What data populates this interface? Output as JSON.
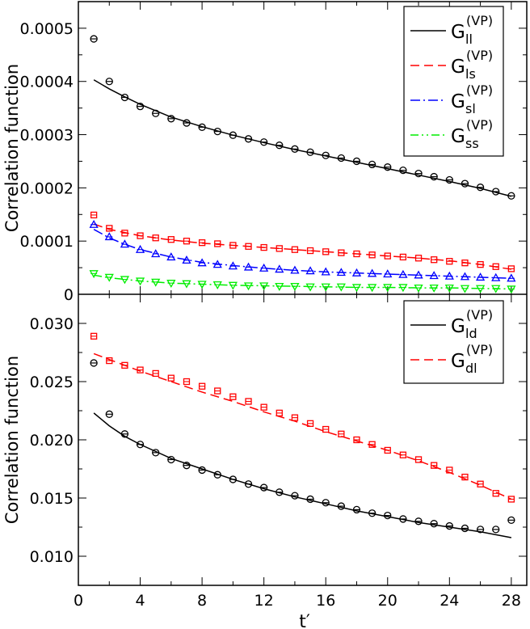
{
  "chart_data": [
    {
      "type": "line",
      "panel": "top",
      "ylabel": "Correlation function",
      "xlabel": "",
      "xlim": [
        0,
        29
      ],
      "ylim": [
        0,
        0.00055
      ],
      "xticks": [
        0,
        4,
        8,
        12,
        16,
        20,
        24,
        28
      ],
      "yticks": [
        0,
        0.0001,
        0.0002,
        0.0003,
        0.0004,
        0.0005
      ],
      "ytick_labels": [
        "0",
        "0.0001",
        "0.0002",
        "0.0003",
        "0.0004",
        "0.0005"
      ],
      "legend_position": "top-right",
      "series": [
        {
          "name": "G",
          "sub": "ll",
          "sup": "(VP)",
          "color": "#000000",
          "dash": "",
          "marker": "circle",
          "points_x": [
            1,
            2,
            3,
            4,
            5,
            6,
            7,
            8,
            9,
            10,
            11,
            12,
            13,
            14,
            15,
            16,
            17,
            18,
            19,
            20,
            21,
            22,
            23,
            24,
            25,
            26,
            27,
            28
          ],
          "points_y": [
            0.00048,
            0.0004,
            0.00037,
            0.000353,
            0.00034,
            0.00033,
            0.000322,
            0.000314,
            0.000306,
            0.000299,
            0.000292,
            0.000286,
            0.00028,
            0.000273,
            0.000267,
            0.000261,
            0.000256,
            0.00025,
            0.000244,
            0.000239,
            0.000233,
            0.000227,
            0.000221,
            0.000215,
            0.000208,
            0.000201,
            0.000193,
            0.000185
          ],
          "fit_x": [
            1,
            2,
            3,
            4,
            5,
            6,
            8,
            10,
            12,
            14,
            16,
            18,
            20,
            22,
            24,
            26,
            28
          ],
          "fit_y": [
            0.000403,
            0.000386,
            0.000371,
            0.000357,
            0.000345,
            0.000333,
            0.000315,
            0.000299,
            0.000285,
            0.000272,
            0.00026,
            0.000248,
            0.000236,
            0.000224,
            0.000212,
            0.000199,
            0.000184
          ]
        },
        {
          "name": "G",
          "sub": "ls",
          "sup": "(VP)",
          "color": "#ff0000",
          "dash": "11,6",
          "marker": "square",
          "points_x": [
            1,
            2,
            3,
            4,
            5,
            6,
            7,
            8,
            9,
            10,
            11,
            12,
            13,
            14,
            15,
            16,
            17,
            18,
            19,
            20,
            21,
            22,
            23,
            24,
            25,
            26,
            27,
            28
          ],
          "points_y": [
            0.000149,
            0.000124,
            0.000115,
            0.00011,
            0.000106,
            0.000103,
            0.0001,
            9.7e-05,
            9.5e-05,
            9.2e-05,
            9e-05,
            8.8e-05,
            8.6e-05,
            8.4e-05,
            8.2e-05,
            8e-05,
            7.8e-05,
            7.6e-05,
            7.4e-05,
            7.2e-05,
            7e-05,
            6.8e-05,
            6.5e-05,
            6.2e-05,
            5.9e-05,
            5.6e-05,
            5.2e-05,
            4.8e-05
          ],
          "fit_x": [
            1,
            2,
            4,
            6,
            8,
            10,
            12,
            14,
            16,
            18,
            20,
            22,
            24,
            26,
            28
          ],
          "fit_y": [
            0.000132,
            0.000122,
            0.00011,
            0.000102,
            9.6e-05,
            9.2e-05,
            8.8e-05,
            8.4e-05,
            8e-05,
            7.6e-05,
            7.2e-05,
            6.8e-05,
            6.3e-05,
            5.6e-05,
            4.7e-05
          ]
        },
        {
          "name": "G",
          "sub": "sl",
          "sup": "(VP)",
          "color": "#0000ff",
          "dash": "12,4,2,4",
          "marker": "triangle-up",
          "points_x": [
            1,
            2,
            3,
            4,
            5,
            6,
            7,
            8,
            9,
            10,
            11,
            12,
            13,
            14,
            15,
            16,
            17,
            18,
            19,
            20,
            21,
            22,
            23,
            24,
            25,
            26,
            27,
            28
          ],
          "points_y": [
            0.000131,
            0.000108,
            9.4e-05,
            8.4e-05,
            7.6e-05,
            7e-05,
            6.4e-05,
            5.9e-05,
            5.6e-05,
            5.3e-05,
            5.1e-05,
            4.9e-05,
            4.7e-05,
            4.5e-05,
            4.4e-05,
            4.2e-05,
            4.1e-05,
            4e-05,
            3.9e-05,
            3.8e-05,
            3.7e-05,
            3.6e-05,
            3.5e-05,
            3.4e-05,
            3.3e-05,
            3.2e-05,
            3.1e-05,
            3e-05
          ],
          "fit_x": [
            1,
            2,
            3,
            4,
            6,
            8,
            10,
            12,
            14,
            16,
            18,
            20,
            22,
            24,
            26,
            28
          ],
          "fit_y": [
            0.000122,
            0.000106,
            9.4e-05,
            8.4e-05,
            7e-05,
            6e-05,
            5.4e-05,
            4.9e-05,
            4.5e-05,
            4.2e-05,
            4e-05,
            3.8e-05,
            3.6e-05,
            3.4e-05,
            3.2e-05,
            3e-05
          ]
        },
        {
          "name": "G",
          "sub": "ss",
          "sup": "(VP)",
          "color": "#00ee00",
          "dash": "10,4,2,4,2,4",
          "marker": "triangle-down",
          "points_x": [
            1,
            2,
            3,
            4,
            5,
            6,
            7,
            8,
            9,
            10,
            11,
            12,
            13,
            14,
            15,
            16,
            17,
            18,
            19,
            20,
            21,
            22,
            23,
            24,
            25,
            26,
            27,
            28
          ],
          "points_y": [
            3.9e-05,
            3.2e-05,
            2.8e-05,
            2.5e-05,
            2.3e-05,
            2.1e-05,
            2e-05,
            1.9e-05,
            1.8e-05,
            1.7e-05,
            1.6e-05,
            1.6e-05,
            1.5e-05,
            1.5e-05,
            1.4e-05,
            1.4e-05,
            1.4e-05,
            1.3e-05,
            1.3e-05,
            1.3e-05,
            1.3e-05,
            1.2e-05,
            1.2e-05,
            1.2e-05,
            1.1e-05,
            1.1e-05,
            1.1e-05,
            1e-05
          ],
          "fit_x": [
            1,
            2,
            4,
            6,
            8,
            10,
            12,
            14,
            16,
            18,
            20,
            22,
            24,
            26,
            28
          ],
          "fit_y": [
            3.6e-05,
            3.1e-05,
            2.5e-05,
            2.1e-05,
            1.9e-05,
            1.7e-05,
            1.6e-05,
            1.5e-05,
            1.4e-05,
            1.3e-05,
            1.3e-05,
            1.2e-05,
            1.2e-05,
            1.1e-05,
            1e-05
          ]
        }
      ]
    },
    {
      "type": "line",
      "panel": "bottom",
      "ylabel": "Correlation function",
      "xlabel": "t′",
      "xlim": [
        0,
        29
      ],
      "ylim": [
        0.0075,
        0.0325
      ],
      "xticks": [
        0,
        4,
        8,
        12,
        16,
        20,
        24,
        28
      ],
      "yticks": [
        0.01,
        0.015,
        0.02,
        0.025,
        0.03
      ],
      "ytick_labels": [
        "0.010",
        "0.015",
        "0.020",
        "0.025",
        "0.030"
      ],
      "legend_position": "top-right",
      "series": [
        {
          "name": "G",
          "sub": "ld",
          "sup": "(VP)",
          "color": "#000000",
          "dash": "",
          "marker": "circle",
          "points_x": [
            1,
            2,
            3,
            4,
            5,
            6,
            7,
            8,
            9,
            10,
            11,
            12,
            13,
            14,
            15,
            16,
            17,
            18,
            19,
            20,
            21,
            22,
            23,
            24,
            25,
            26,
            27,
            28
          ],
          "points_y": [
            0.0266,
            0.0222,
            0.0205,
            0.0196,
            0.0189,
            0.0183,
            0.0178,
            0.0174,
            0.017,
            0.0166,
            0.0162,
            0.0159,
            0.0155,
            0.0152,
            0.0149,
            0.0146,
            0.0143,
            0.014,
            0.0137,
            0.0135,
            0.0132,
            0.013,
            0.0128,
            0.0126,
            0.0124,
            0.0123,
            0.0123,
            0.0131
          ],
          "fit_x": [
            1,
            2,
            3,
            4,
            6,
            8,
            10,
            12,
            14,
            16,
            18,
            20,
            22,
            24,
            26,
            28
          ],
          "fit_y": [
            0.0223,
            0.0212,
            0.0203,
            0.0196,
            0.0184,
            0.0175,
            0.0166,
            0.0158,
            0.0151,
            0.0145,
            0.0139,
            0.0134,
            0.0129,
            0.0125,
            0.0121,
            0.0116
          ]
        },
        {
          "name": "G",
          "sub": "dl",
          "sup": "(VP)",
          "color": "#ff0000",
          "dash": "11,6",
          "marker": "square",
          "points_x": [
            1,
            2,
            3,
            4,
            5,
            6,
            7,
            8,
            9,
            10,
            11,
            12,
            13,
            14,
            15,
            16,
            17,
            18,
            19,
            20,
            21,
            22,
            23,
            24,
            25,
            26,
            27,
            28
          ],
          "points_y": [
            0.0289,
            0.0268,
            0.0264,
            0.026,
            0.0257,
            0.0253,
            0.025,
            0.0246,
            0.0242,
            0.0237,
            0.0233,
            0.0228,
            0.0223,
            0.0219,
            0.0214,
            0.0209,
            0.0205,
            0.02,
            0.0196,
            0.0191,
            0.0187,
            0.0183,
            0.0178,
            0.0174,
            0.0168,
            0.0162,
            0.0154,
            0.0149
          ],
          "fit_x": [
            1,
            2,
            4,
            6,
            8,
            10,
            12,
            14,
            16,
            18,
            20,
            22,
            24,
            26,
            28
          ],
          "fit_y": [
            0.0274,
            0.0269,
            0.0259,
            0.025,
            0.0241,
            0.0233,
            0.0224,
            0.0216,
            0.0207,
            0.0199,
            0.0191,
            0.0182,
            0.0172,
            0.0161,
            0.0149
          ]
        }
      ]
    }
  ]
}
